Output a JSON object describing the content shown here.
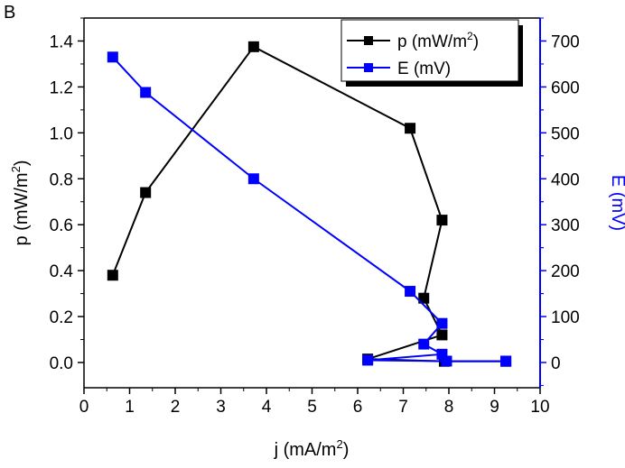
{
  "chart_data": {
    "type": "line",
    "panel_label": "B",
    "xlabel": "j (mA/m",
    "xlabel_sup": "2",
    "xlabel_end": ")",
    "ylabel": "p (mW/m",
    "ylabel_sup": "2",
    "ylabel_end": ")",
    "y2label": "E (mV)",
    "xlim": [
      0,
      10
    ],
    "ylim": [
      -0.11,
      1.5
    ],
    "y2lim": [
      -55,
      750
    ],
    "xticks": [
      0,
      1,
      2,
      3,
      4,
      5,
      6,
      7,
      8,
      9,
      10
    ],
    "yticks": [
      0.0,
      0.2,
      0.4,
      0.6,
      0.8,
      1.0,
      1.2,
      1.4
    ],
    "y2ticks": [
      0,
      100,
      200,
      300,
      400,
      500,
      600,
      700
    ],
    "legend_position": "top-right",
    "series": [
      {
        "name": "p (mW/m",
        "name_sup": "2",
        "name_end": ")",
        "axis": "left",
        "color": "#000000",
        "x": [
          0.63,
          1.35,
          3.72,
          7.15,
          7.85,
          7.45,
          7.85,
          6.22,
          7.9,
          9.25
        ],
        "y": [
          0.38,
          0.74,
          1.375,
          1.02,
          0.62,
          0.28,
          0.12,
          0.015,
          0.005,
          0.005
        ]
      },
      {
        "name": "E (mV)",
        "axis": "right",
        "color": "#0000ff",
        "x": [
          0.63,
          1.35,
          3.72,
          7.15,
          7.85,
          7.45,
          7.85,
          6.22,
          7.95,
          9.25
        ],
        "y": [
          665,
          588,
          400,
          155,
          85,
          40,
          18,
          5,
          3,
          3
        ]
      }
    ]
  }
}
